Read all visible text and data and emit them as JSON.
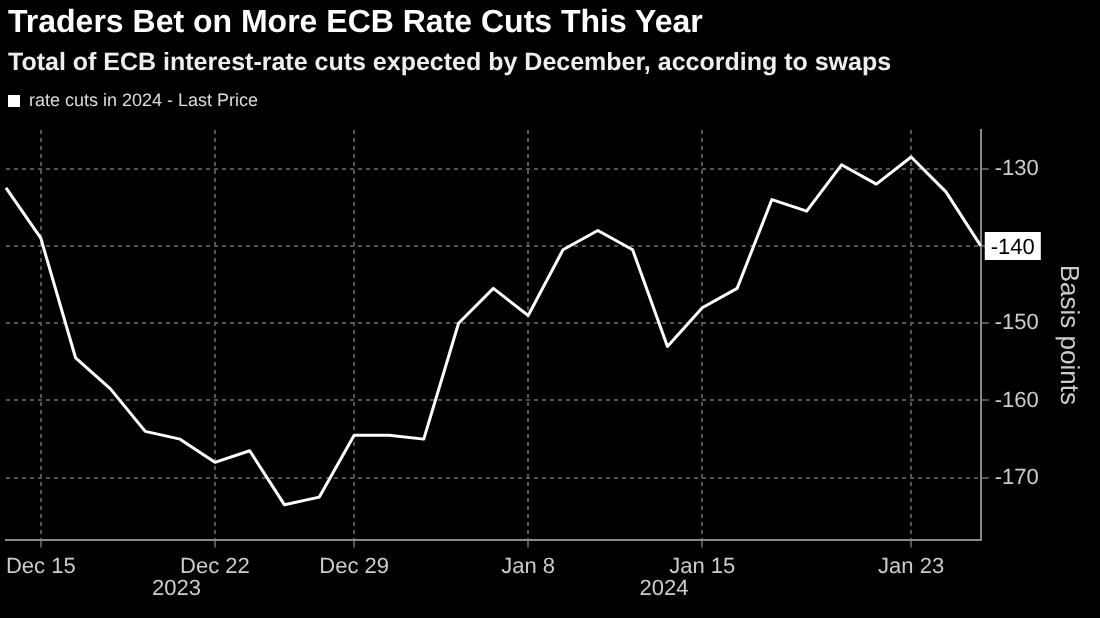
{
  "chart_data": {
    "type": "line",
    "title": "Traders Bet on More ECB Rate Cuts This Year",
    "subtitle": "Total of ECB interest-rate cuts expected by December, according to swaps",
    "categories": [
      null,
      "Dec 15",
      null,
      null,
      null,
      null,
      "Dec 22",
      null,
      null,
      null,
      "Dec 29",
      null,
      null,
      null,
      null,
      "Jan 8",
      null,
      null,
      null,
      null,
      "Jan 15",
      null,
      null,
      null,
      null,
      null,
      "Jan 23",
      null,
      null
    ],
    "series": [
      {
        "name": "rate cuts in 2024 - Last Price",
        "color": "#ffffff",
        "values": [
          -132.5,
          -139,
          -154.5,
          -158.5,
          -164,
          -165,
          -168,
          -166.5,
          -173.5,
          -172.5,
          -164.5,
          -164.5,
          -165,
          -150,
          -145.5,
          -149,
          -140.5,
          -138,
          -140.5,
          -153,
          -148,
          -145.5,
          -134,
          -135.5,
          -129.5,
          -132,
          -128.5,
          -133,
          -140
        ],
        "value_labels": [
          null,
          null,
          null,
          null,
          null,
          null,
          null,
          null,
          null,
          null,
          null,
          null,
          null,
          null,
          null,
          null,
          null,
          null,
          null,
          null,
          null,
          null,
          null,
          null,
          null,
          null,
          null,
          null,
          "-140"
        ]
      }
    ],
    "ylabel": "Basis points",
    "ylim": [
      -178,
      -125
    ],
    "yticks": [
      -170,
      -160,
      -150,
      -140,
      -130
    ],
    "annotations": [
      "2023",
      "2024"
    ],
    "grid": true,
    "legend": "top left",
    "marker": "none",
    "line_style": "solid"
  }
}
